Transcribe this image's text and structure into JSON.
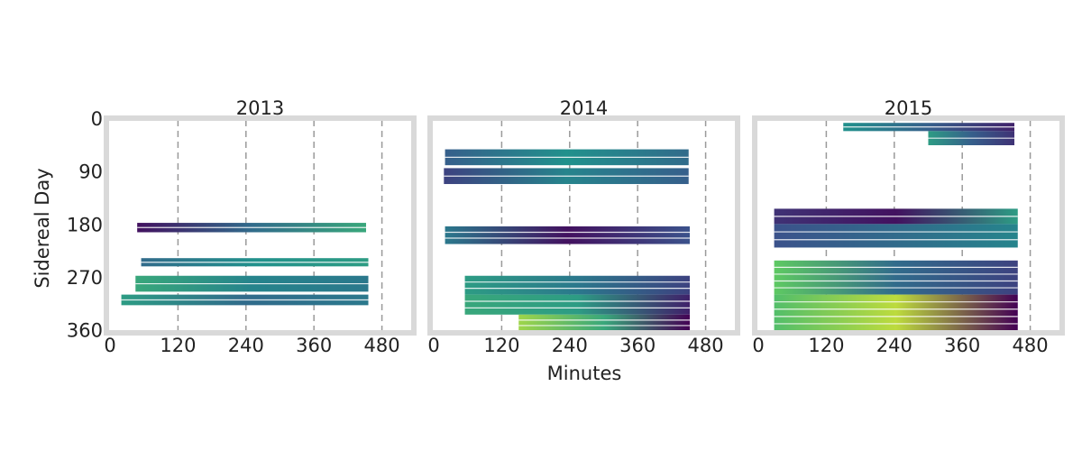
{
  "chart_data": {
    "type": "heatmap",
    "layout": "three panels side by side, shared y axis",
    "xlabel": "Minutes",
    "ylabel": "Sidereal Day",
    "x_ticks": [
      0,
      120,
      240,
      360,
      480
    ],
    "y_ticks": [
      0,
      90,
      180,
      270,
      360
    ],
    "xlim": [
      0,
      530
    ],
    "ylim": [
      365,
      0
    ],
    "y_inverted": true,
    "grid": "vertical dashed gridlines at x ticks",
    "colormap": "viridis",
    "colormap_stops": [
      "#440154",
      "#3b528b",
      "#21918c",
      "#5ec962",
      "#fde725"
    ],
    "panels": [
      {
        "title": "2013",
        "bands": [
          {
            "y0": 178,
            "y1": 194,
            "x0": 48,
            "x1": 452,
            "c0": 0.05,
            "cm": 0.35,
            "c1": 0.6
          },
          {
            "y0": 238,
            "y1": 252,
            "x0": 55,
            "x1": 456,
            "c0": 0.35,
            "cm": 0.5,
            "c1": 0.55
          },
          {
            "y0": 268,
            "y1": 295,
            "x0": 45,
            "x1": 456,
            "c0": 0.6,
            "cm": 0.45,
            "c1": 0.4
          },
          {
            "y0": 300,
            "y1": 318,
            "x0": 20,
            "x1": 456,
            "c0": 0.55,
            "cm": 0.35,
            "c1": 0.4
          }
        ]
      },
      {
        "title": "2014",
        "bands": [
          {
            "y0": 53,
            "y1": 80,
            "x0": 20,
            "x1": 450,
            "c0": 0.3,
            "cm": 0.5,
            "c1": 0.35
          },
          {
            "y0": 85,
            "y1": 112,
            "x0": 18,
            "x1": 450,
            "c0": 0.2,
            "cm": 0.45,
            "c1": 0.3
          },
          {
            "y0": 184,
            "y1": 214,
            "x0": 20,
            "x1": 452,
            "c0": 0.4,
            "cm": 0.05,
            "c1": 0.25
          },
          {
            "y0": 268,
            "y1": 300,
            "x0": 55,
            "x1": 452,
            "c0": 0.55,
            "cm": 0.4,
            "c1": 0.2
          },
          {
            "y0": 300,
            "y1": 334,
            "x0": 55,
            "x1": 452,
            "c0": 0.6,
            "cm": 0.55,
            "c1": 0.1
          },
          {
            "y0": 334,
            "y1": 362,
            "x0": 150,
            "x1": 452,
            "c0": 0.85,
            "cm": 0.6,
            "c1": 0.0
          }
        ]
      },
      {
        "title": "2015",
        "bands": [
          {
            "y0": 8,
            "y1": 22,
            "x0": 150,
            "x1": 452,
            "c0": 0.5,
            "cm": 0.3,
            "c1": 0.1
          },
          {
            "y0": 22,
            "y1": 46,
            "x0": 300,
            "x1": 452,
            "c0": 0.55,
            "cm": 0.3,
            "c1": 0.15
          },
          {
            "y0": 154,
            "y1": 180,
            "x0": 28,
            "x1": 458,
            "c0": 0.15,
            "cm": 0.05,
            "c1": 0.55
          },
          {
            "y0": 180,
            "y1": 220,
            "x0": 28,
            "x1": 458,
            "c0": 0.25,
            "cm": 0.35,
            "c1": 0.45
          },
          {
            "y0": 242,
            "y1": 300,
            "x0": 28,
            "x1": 458,
            "c0": 0.75,
            "cm": 0.35,
            "c1": 0.2
          },
          {
            "y0": 300,
            "y1": 362,
            "x0": 28,
            "x1": 458,
            "c0": 0.7,
            "cm": 0.9,
            "c1": 0.0
          }
        ]
      }
    ]
  }
}
